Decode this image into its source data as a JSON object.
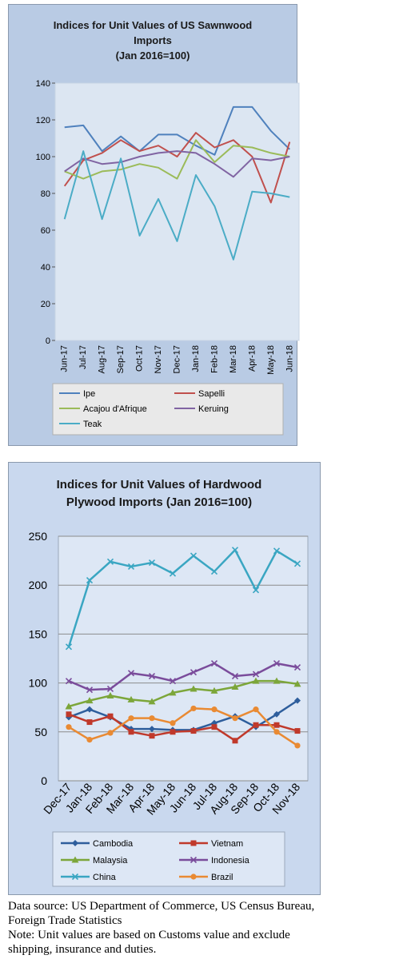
{
  "chart_data": [
    {
      "type": "line",
      "title_lines": [
        "Indices for Unit Values of US Sawnwood",
        "Imports",
        "(Jan 2016=100)"
      ],
      "xlabel": "",
      "ylabel": "",
      "ylim": [
        0,
        140
      ],
      "yticks": [
        0,
        20,
        40,
        60,
        80,
        100,
        120,
        140
      ],
      "grid": false,
      "legend": "bottom",
      "categories": [
        "Jun-17",
        "Jul-17",
        "Aug-17",
        "Sep-17",
        "Oct-17",
        "Nov-17",
        "Dec-17",
        "Jan-18",
        "Feb-18",
        "Mar-18",
        "Apr-18",
        "May-18",
        "Jun-18"
      ],
      "series": [
        {
          "name": "Ipe",
          "color": "#4f81bd",
          "values": [
            116,
            117,
            103,
            111,
            103,
            112,
            112,
            106,
            101,
            127,
            127,
            114,
            104
          ]
        },
        {
          "name": "Sapelli",
          "color": "#c0504d",
          "values": [
            84,
            98,
            102,
            109,
            103,
            106,
            100,
            113,
            105,
            109,
            100,
            75,
            108
          ]
        },
        {
          "name": "Acajou d'Afrique",
          "color": "#9bbb59",
          "values": [
            92,
            88,
            92,
            93,
            96,
            94,
            88,
            109,
            97,
            106,
            105,
            102,
            100
          ]
        },
        {
          "name": "Keruing",
          "color": "#8064a2",
          "values": [
            92,
            99,
            96,
            97,
            100,
            102,
            103,
            102,
            96,
            89,
            99,
            98,
            100
          ]
        },
        {
          "name": "Teak",
          "color": "#4bacc6",
          "values": [
            66,
            103,
            66,
            99,
            57,
            77,
            54,
            90,
            73,
            44,
            81,
            80,
            78
          ]
        }
      ]
    },
    {
      "type": "line",
      "title_lines": [
        "Indices for Unit Values of Hardwood",
        "Plywood Imports (Jan 2016=100)"
      ],
      "xlabel": "",
      "ylabel": "",
      "ylim": [
        0,
        250
      ],
      "yticks": [
        0,
        50,
        100,
        150,
        200,
        250
      ],
      "grid": true,
      "legend": "bottom",
      "categories": [
        "Dec-17",
        "Jan-18",
        "Feb-18",
        "Mar-18",
        "Apr-18",
        "May-18",
        "Jun-18",
        "Jul-18",
        "Aug-18",
        "Sep-18",
        "Oct-18",
        "Nov-18"
      ],
      "series": [
        {
          "name": "Cambodia",
          "color": "#2e5e9c",
          "marker": "diamond",
          "values": [
            65,
            73,
            65,
            53,
            53,
            52,
            52,
            59,
            66,
            55,
            68,
            82
          ]
        },
        {
          "name": "Vietnam",
          "color": "#c0392b",
          "marker": "square",
          "values": [
            68,
            60,
            66,
            50,
            46,
            50,
            51,
            55,
            41,
            57,
            57,
            51
          ]
        },
        {
          "name": "Malaysia",
          "color": "#7ca63a",
          "marker": "triangle",
          "values": [
            76,
            82,
            87,
            83,
            81,
            90,
            94,
            92,
            96,
            102,
            102,
            99
          ]
        },
        {
          "name": "Indonesia",
          "color": "#7a4c9b",
          "marker": "x",
          "values": [
            102,
            93,
            94,
            110,
            107,
            102,
            111,
            120,
            107,
            109,
            120,
            116
          ]
        },
        {
          "name": "China",
          "color": "#3aa6c2",
          "marker": "x",
          "values": [
            137,
            205,
            224,
            219,
            223,
            212,
            230,
            214,
            236,
            195,
            235,
            222
          ]
        },
        {
          "name": "Brazil",
          "color": "#e98a33",
          "marker": "circle",
          "values": [
            55,
            42,
            49,
            64,
            64,
            59,
            74,
            73,
            64,
            73,
            50,
            36
          ]
        }
      ]
    }
  ],
  "footer": {
    "source_line1": "Data source: US Department of Commerce, US Census Bureau,",
    "source_line2": "Foreign Trade Statistics",
    "note_line1": "Note: Unit values are based on Customs value and exclude",
    "note_line2": "shipping, insurance and duties."
  }
}
